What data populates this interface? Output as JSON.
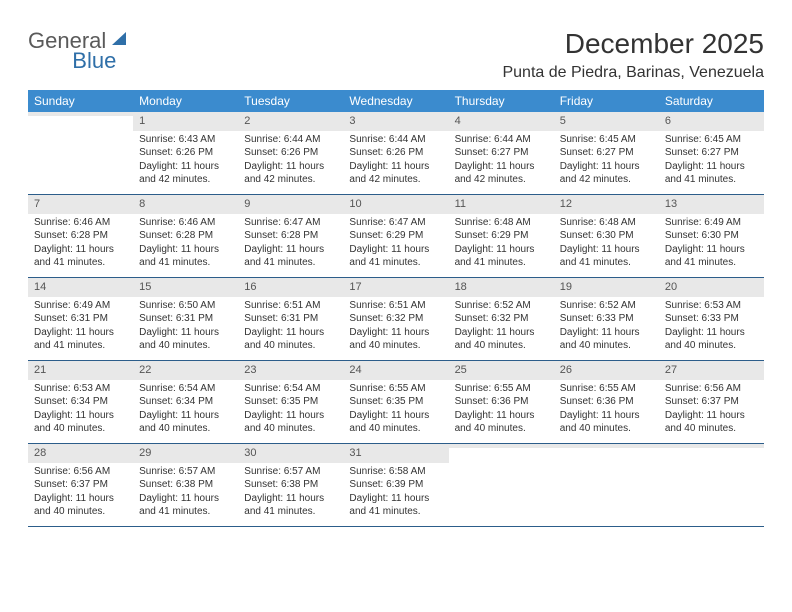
{
  "brand": {
    "part1": "General",
    "part2": "Blue"
  },
  "title": "December 2025",
  "location": "Punta de Piedra, Barinas, Venezuela",
  "colors": {
    "header_bg": "#3b8bce",
    "header_text": "#ffffff",
    "daynum_bg": "#e8e8e8",
    "week_border": "#2c5d8a",
    "body_text": "#333333",
    "logo_gray": "#5a5a5a",
    "logo_blue": "#2f6fa8"
  },
  "dow": [
    "Sunday",
    "Monday",
    "Tuesday",
    "Wednesday",
    "Thursday",
    "Friday",
    "Saturday"
  ],
  "weeks": [
    [
      {
        "n": "",
        "sr": "",
        "ss": "",
        "dl": ""
      },
      {
        "n": "1",
        "sr": "Sunrise: 6:43 AM",
        "ss": "Sunset: 6:26 PM",
        "dl": "Daylight: 11 hours and 42 minutes."
      },
      {
        "n": "2",
        "sr": "Sunrise: 6:44 AM",
        "ss": "Sunset: 6:26 PM",
        "dl": "Daylight: 11 hours and 42 minutes."
      },
      {
        "n": "3",
        "sr": "Sunrise: 6:44 AM",
        "ss": "Sunset: 6:26 PM",
        "dl": "Daylight: 11 hours and 42 minutes."
      },
      {
        "n": "4",
        "sr": "Sunrise: 6:44 AM",
        "ss": "Sunset: 6:27 PM",
        "dl": "Daylight: 11 hours and 42 minutes."
      },
      {
        "n": "5",
        "sr": "Sunrise: 6:45 AM",
        "ss": "Sunset: 6:27 PM",
        "dl": "Daylight: 11 hours and 42 minutes."
      },
      {
        "n": "6",
        "sr": "Sunrise: 6:45 AM",
        "ss": "Sunset: 6:27 PM",
        "dl": "Daylight: 11 hours and 41 minutes."
      }
    ],
    [
      {
        "n": "7",
        "sr": "Sunrise: 6:46 AM",
        "ss": "Sunset: 6:28 PM",
        "dl": "Daylight: 11 hours and 41 minutes."
      },
      {
        "n": "8",
        "sr": "Sunrise: 6:46 AM",
        "ss": "Sunset: 6:28 PM",
        "dl": "Daylight: 11 hours and 41 minutes."
      },
      {
        "n": "9",
        "sr": "Sunrise: 6:47 AM",
        "ss": "Sunset: 6:28 PM",
        "dl": "Daylight: 11 hours and 41 minutes."
      },
      {
        "n": "10",
        "sr": "Sunrise: 6:47 AM",
        "ss": "Sunset: 6:29 PM",
        "dl": "Daylight: 11 hours and 41 minutes."
      },
      {
        "n": "11",
        "sr": "Sunrise: 6:48 AM",
        "ss": "Sunset: 6:29 PM",
        "dl": "Daylight: 11 hours and 41 minutes."
      },
      {
        "n": "12",
        "sr": "Sunrise: 6:48 AM",
        "ss": "Sunset: 6:30 PM",
        "dl": "Daylight: 11 hours and 41 minutes."
      },
      {
        "n": "13",
        "sr": "Sunrise: 6:49 AM",
        "ss": "Sunset: 6:30 PM",
        "dl": "Daylight: 11 hours and 41 minutes."
      }
    ],
    [
      {
        "n": "14",
        "sr": "Sunrise: 6:49 AM",
        "ss": "Sunset: 6:31 PM",
        "dl": "Daylight: 11 hours and 41 minutes."
      },
      {
        "n": "15",
        "sr": "Sunrise: 6:50 AM",
        "ss": "Sunset: 6:31 PM",
        "dl": "Daylight: 11 hours and 40 minutes."
      },
      {
        "n": "16",
        "sr": "Sunrise: 6:51 AM",
        "ss": "Sunset: 6:31 PM",
        "dl": "Daylight: 11 hours and 40 minutes."
      },
      {
        "n": "17",
        "sr": "Sunrise: 6:51 AM",
        "ss": "Sunset: 6:32 PM",
        "dl": "Daylight: 11 hours and 40 minutes."
      },
      {
        "n": "18",
        "sr": "Sunrise: 6:52 AM",
        "ss": "Sunset: 6:32 PM",
        "dl": "Daylight: 11 hours and 40 minutes."
      },
      {
        "n": "19",
        "sr": "Sunrise: 6:52 AM",
        "ss": "Sunset: 6:33 PM",
        "dl": "Daylight: 11 hours and 40 minutes."
      },
      {
        "n": "20",
        "sr": "Sunrise: 6:53 AM",
        "ss": "Sunset: 6:33 PM",
        "dl": "Daylight: 11 hours and 40 minutes."
      }
    ],
    [
      {
        "n": "21",
        "sr": "Sunrise: 6:53 AM",
        "ss": "Sunset: 6:34 PM",
        "dl": "Daylight: 11 hours and 40 minutes."
      },
      {
        "n": "22",
        "sr": "Sunrise: 6:54 AM",
        "ss": "Sunset: 6:34 PM",
        "dl": "Daylight: 11 hours and 40 minutes."
      },
      {
        "n": "23",
        "sr": "Sunrise: 6:54 AM",
        "ss": "Sunset: 6:35 PM",
        "dl": "Daylight: 11 hours and 40 minutes."
      },
      {
        "n": "24",
        "sr": "Sunrise: 6:55 AM",
        "ss": "Sunset: 6:35 PM",
        "dl": "Daylight: 11 hours and 40 minutes."
      },
      {
        "n": "25",
        "sr": "Sunrise: 6:55 AM",
        "ss": "Sunset: 6:36 PM",
        "dl": "Daylight: 11 hours and 40 minutes."
      },
      {
        "n": "26",
        "sr": "Sunrise: 6:55 AM",
        "ss": "Sunset: 6:36 PM",
        "dl": "Daylight: 11 hours and 40 minutes."
      },
      {
        "n": "27",
        "sr": "Sunrise: 6:56 AM",
        "ss": "Sunset: 6:37 PM",
        "dl": "Daylight: 11 hours and 40 minutes."
      }
    ],
    [
      {
        "n": "28",
        "sr": "Sunrise: 6:56 AM",
        "ss": "Sunset: 6:37 PM",
        "dl": "Daylight: 11 hours and 40 minutes."
      },
      {
        "n": "29",
        "sr": "Sunrise: 6:57 AM",
        "ss": "Sunset: 6:38 PM",
        "dl": "Daylight: 11 hours and 41 minutes."
      },
      {
        "n": "30",
        "sr": "Sunrise: 6:57 AM",
        "ss": "Sunset: 6:38 PM",
        "dl": "Daylight: 11 hours and 41 minutes."
      },
      {
        "n": "31",
        "sr": "Sunrise: 6:58 AM",
        "ss": "Sunset: 6:39 PM",
        "dl": "Daylight: 11 hours and 41 minutes."
      },
      {
        "n": "",
        "sr": "",
        "ss": "",
        "dl": ""
      },
      {
        "n": "",
        "sr": "",
        "ss": "",
        "dl": ""
      },
      {
        "n": "",
        "sr": "",
        "ss": "",
        "dl": ""
      }
    ]
  ]
}
